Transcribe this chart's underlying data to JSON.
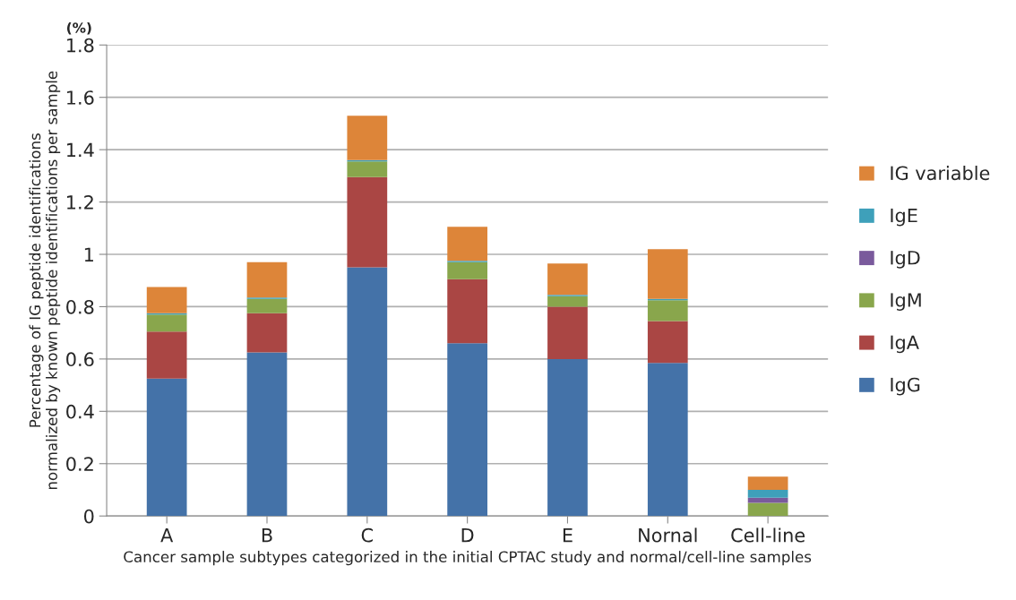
{
  "chart_data": {
    "type": "bar",
    "stacked": true,
    "xlabel": "Cancer sample subtypes categorized in the initial CPTAC study and normal/cell-line samples",
    "ylabel": "Percentage of IG peptide identifications\nnormalized by known peptide identifications per sample",
    "annotations": [
      "(%)"
    ],
    "categories": [
      "A",
      "B",
      "C",
      "D",
      "E",
      "Nornal",
      "Cell-line"
    ],
    "series": [
      {
        "name": "IgG",
        "color": "#4472a8",
        "values": [
          0.525,
          0.625,
          0.95,
          0.66,
          0.6,
          0.585,
          0
        ]
      },
      {
        "name": "IgA",
        "color": "#aa4644",
        "values": [
          0.18,
          0.15,
          0.345,
          0.245,
          0.2,
          0.16,
          0
        ]
      },
      {
        "name": "IgM",
        "color": "#89a64c",
        "values": [
          0.065,
          0.055,
          0.06,
          0.065,
          0.04,
          0.08,
          0.05
        ]
      },
      {
        "name": "IgD",
        "color": "#7a5a9c",
        "values": [
          0,
          0,
          0,
          0,
          0,
          0,
          0.02
        ]
      },
      {
        "name": "IgE",
        "color": "#3ea0ba",
        "values": [
          0.005,
          0.005,
          0.005,
          0.005,
          0.005,
          0.005,
          0.03
        ]
      },
      {
        "name": "IG variable",
        "color": "#dd8539",
        "values": [
          0.1,
          0.135,
          0.17,
          0.13,
          0.12,
          0.19,
          0.05
        ]
      }
    ],
    "ylim": [
      0,
      1.8
    ],
    "yticks": [
      0,
      0.2,
      0.4,
      0.6,
      0.8,
      1,
      1.2,
      1.4,
      1.6,
      1.8
    ],
    "grid": "y",
    "legend": "right"
  }
}
